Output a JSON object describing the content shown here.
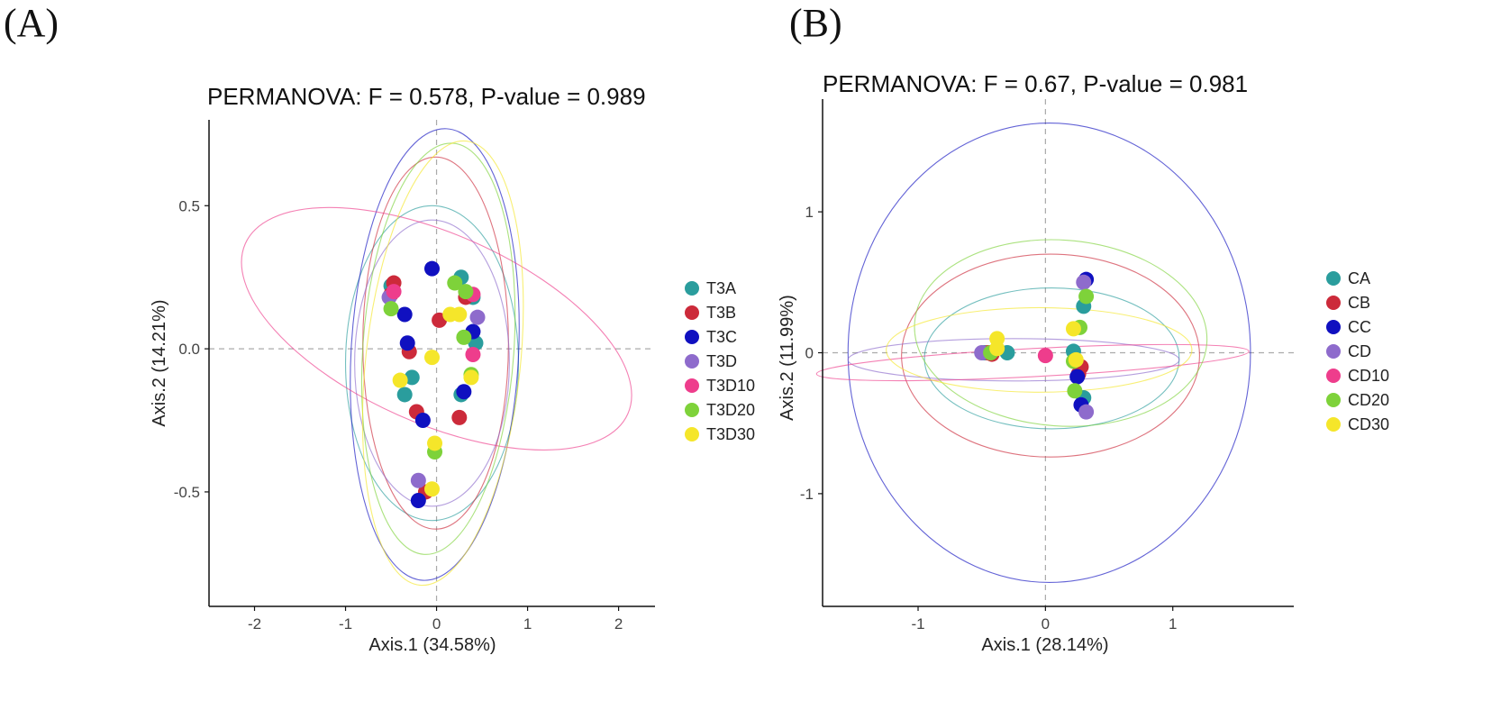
{
  "panel_labels": [
    "(A)",
    "(B)"
  ],
  "chart_data": [
    {
      "type": "scatter",
      "title": "PERMANOVA: F = 0.578, P-value = 0.989",
      "xlabel": "Axis.1 (34.58%)",
      "ylabel": "Axis.2 (14.21%)",
      "xlim": [
        -2.5,
        2.4
      ],
      "ylim": [
        -0.9,
        0.8
      ],
      "xticks": [
        -2,
        -1,
        0,
        1,
        2
      ],
      "xtick_labels": [
        "-2",
        "-1",
        "0",
        "1",
        "2"
      ],
      "yticks": [
        -0.5,
        0.0,
        0.5
      ],
      "ytick_labels": [
        "-0.5",
        "0.0",
        "0.5"
      ],
      "legend": [
        "T3A",
        "T3B",
        "T3C",
        "T3D",
        "T3D10",
        "T3D20",
        "T3D30"
      ],
      "series": [
        {
          "name": "T3A",
          "color": "#2a9d9d",
          "points": [
            [
              -0.5,
              0.22
            ],
            [
              0.27,
              0.25
            ],
            [
              0.4,
              0.18
            ],
            [
              0.43,
              0.02
            ],
            [
              -0.27,
              -0.1
            ],
            [
              -0.35,
              -0.16
            ],
            [
              0.27,
              -0.16
            ]
          ],
          "ellipse": {
            "cx": -0.05,
            "cy": -0.05,
            "rx": 0.95,
            "ry": 0.55,
            "angle": 0
          }
        },
        {
          "name": "T3B",
          "color": "#cc2a3a",
          "points": [
            [
              -0.47,
              0.23
            ],
            [
              -0.5,
              0.19
            ],
            [
              0.32,
              0.18
            ],
            [
              0.03,
              0.1
            ],
            [
              -0.3,
              -0.01
            ],
            [
              -0.22,
              -0.22
            ],
            [
              0.25,
              -0.24
            ],
            [
              -0.12,
              -0.5
            ]
          ],
          "ellipse": {
            "cx": -0.01,
            "cy": 0.02,
            "rx": 0.8,
            "ry": 0.65,
            "angle": 0
          }
        },
        {
          "name": "T3C",
          "color": "#1010c0",
          "points": [
            [
              -0.05,
              0.28
            ],
            [
              -0.35,
              0.12
            ],
            [
              -0.32,
              0.02
            ],
            [
              0.4,
              0.06
            ],
            [
              0.3,
              -0.15
            ],
            [
              -0.15,
              -0.25
            ],
            [
              -0.2,
              -0.53
            ]
          ],
          "ellipse": {
            "cx": -0.02,
            "cy": -0.02,
            "rx": 0.92,
            "ry": 0.79,
            "angle": -3
          }
        },
        {
          "name": "T3D",
          "color": "#8e6bcc",
          "points": [
            [
              -0.52,
              0.18
            ],
            [
              0.45,
              0.11
            ],
            [
              -0.2,
              -0.46
            ]
          ],
          "ellipse": {
            "cx": -0.05,
            "cy": -0.05,
            "rx": 0.85,
            "ry": 0.5,
            "angle": 0
          }
        },
        {
          "name": "T3D10",
          "color": "#ee3d8c",
          "points": [
            [
              -0.47,
              0.2
            ],
            [
              0.4,
              0.19
            ],
            [
              0.4,
              -0.02
            ]
          ],
          "ellipse": {
            "cx": 0.0,
            "cy": 0.07,
            "rx": 2.3,
            "ry": 0.33,
            "angle": -24
          }
        },
        {
          "name": "T3D20",
          "color": "#7ed23a",
          "points": [
            [
              -0.5,
              0.14
            ],
            [
              0.2,
              0.23
            ],
            [
              0.32,
              0.2
            ],
            [
              0.3,
              0.04
            ],
            [
              0.38,
              -0.09
            ],
            [
              -0.02,
              -0.36
            ]
          ],
          "ellipse": {
            "cx": 0.02,
            "cy": 0.0,
            "rx": 0.83,
            "ry": 0.72,
            "angle": -4
          }
        },
        {
          "name": "T3D30",
          "color": "#f5e62a",
          "points": [
            [
              -0.05,
              -0.03
            ],
            [
              0.15,
              0.12
            ],
            [
              0.25,
              0.12
            ],
            [
              0.38,
              -0.1
            ],
            [
              -0.4,
              -0.11
            ],
            [
              -0.02,
              -0.33
            ],
            [
              -0.05,
              -0.49
            ]
          ],
          "ellipse": {
            "cx": 0.07,
            "cy": -0.05,
            "rx": 0.85,
            "ry": 0.78,
            "angle": -6
          }
        }
      ]
    },
    {
      "type": "scatter",
      "title": "PERMANOVA: F = 0.67, P-value = 0.981",
      "xlabel": "Axis.1 (28.14%)",
      "ylabel": "Axis.2 (11.99%)",
      "xlim": [
        -1.75,
        1.95
      ],
      "ylim": [
        -1.8,
        1.8
      ],
      "xticks": [
        -1,
        0,
        1
      ],
      "xtick_labels": [
        "-1",
        "0",
        "1"
      ],
      "yticks": [
        -1,
        0,
        1
      ],
      "ytick_labels": [
        "-1",
        "0",
        "1"
      ],
      "legend": [
        "CA",
        "CB",
        "CC",
        "CD",
        "CD10",
        "CD20",
        "CD30"
      ],
      "series": [
        {
          "name": "CA",
          "color": "#2a9d9d",
          "points": [
            [
              -0.48,
              0.0
            ],
            [
              -0.3,
              0.0
            ],
            [
              0.22,
              0.01
            ],
            [
              0.3,
              0.33
            ],
            [
              0.3,
              -0.32
            ]
          ],
          "ellipse": {
            "cx": 0.05,
            "cy": -0.04,
            "rx": 1.0,
            "ry": 0.5,
            "angle": 0
          }
        },
        {
          "name": "CB",
          "color": "#cc2a3a",
          "points": [
            [
              -0.45,
              0.0
            ],
            [
              -0.42,
              -0.01
            ],
            [
              0.28,
              -0.1
            ],
            [
              0.26,
              -0.15
            ]
          ],
          "ellipse": {
            "cx": 0.04,
            "cy": -0.02,
            "rx": 1.17,
            "ry": 0.72,
            "angle": 0
          }
        },
        {
          "name": "CC",
          "color": "#1010c0",
          "points": [
            [
              0.32,
              0.52
            ],
            [
              0.25,
              -0.17
            ],
            [
              0.28,
              -0.37
            ]
          ],
          "ellipse": {
            "cx": 0.03,
            "cy": 0.0,
            "rx": 1.58,
            "ry": 1.63,
            "angle": 0
          }
        },
        {
          "name": "CD",
          "color": "#8e6bcc",
          "points": [
            [
              -0.5,
              0.0
            ],
            [
              0.3,
              0.5
            ],
            [
              0.32,
              -0.42
            ]
          ],
          "ellipse": {
            "cx": -0.25,
            "cy": -0.05,
            "rx": 1.3,
            "ry": 0.15,
            "angle": 0
          }
        },
        {
          "name": "CD10",
          "color": "#ee3d8c",
          "points": [
            [
              0.0,
              -0.02
            ]
          ],
          "ellipse": {
            "cx": -0.1,
            "cy": -0.07,
            "rx": 1.7,
            "ry": 0.1,
            "angle": 3
          }
        },
        {
          "name": "CD20",
          "color": "#7ed23a",
          "points": [
            [
              0.32,
              0.4
            ],
            [
              0.27,
              0.18
            ],
            [
              0.22,
              -0.06
            ],
            [
              0.23,
              -0.27
            ],
            [
              -0.43,
              0.0
            ]
          ],
          "ellipse": {
            "cx": 0.12,
            "cy": 0.14,
            "rx": 1.15,
            "ry": 0.66,
            "angle": -4
          }
        },
        {
          "name": "CD30",
          "color": "#f5e62a",
          "points": [
            [
              -0.38,
              0.1
            ],
            [
              -0.38,
              0.03
            ],
            [
              0.22,
              0.17
            ],
            [
              0.24,
              -0.05
            ]
          ],
          "ellipse": {
            "cx": -0.05,
            "cy": 0.02,
            "rx": 1.2,
            "ry": 0.3,
            "angle": 0
          }
        }
      ]
    }
  ]
}
